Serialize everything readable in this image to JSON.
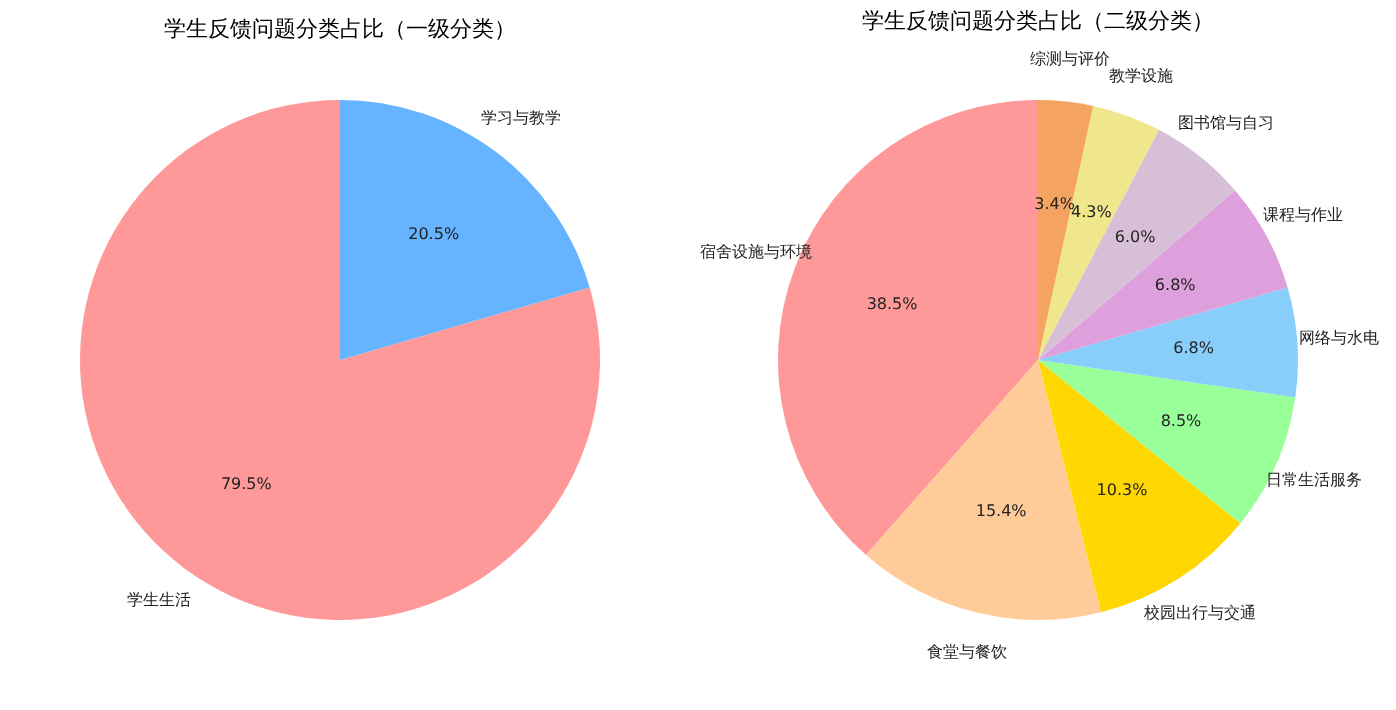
{
  "chart_data": [
    {
      "type": "pie",
      "title": "学生反馈问题分类占比（一级分类）",
      "categories": [
        "学生生活",
        "学习与教学"
      ],
      "values": [
        79.5,
        20.5
      ],
      "colors": [
        "#ff9999",
        "#66b3ff"
      ],
      "value_labels": [
        "79.5%",
        "20.5%"
      ]
    },
    {
      "type": "pie",
      "title": "学生反馈问题分类占比（二级分类）",
      "categories": [
        "宿舍设施与环境",
        "食堂与餐饮",
        "校园出行与交通",
        "日常生活服务",
        "网络与水电",
        "课程与作业",
        "图书馆与自习",
        "教学设施",
        "综测与评价"
      ],
      "values": [
        38.5,
        15.4,
        10.3,
        8.5,
        6.8,
        6.8,
        6.0,
        4.3,
        3.4
      ],
      "colors": [
        "#ff9999",
        "#ffcc99",
        "#ffd700",
        "#99ff99",
        "#87cefa",
        "#dda0dd",
        "#d8bfd8",
        "#f0e68c",
        "#f4a460"
      ],
      "value_labels": [
        "38.5%",
        "15.4%",
        "10.3%",
        "8.5%",
        "6.8%",
        "6.8%",
        "6.0%",
        "4.3%",
        "3.4%"
      ]
    }
  ]
}
